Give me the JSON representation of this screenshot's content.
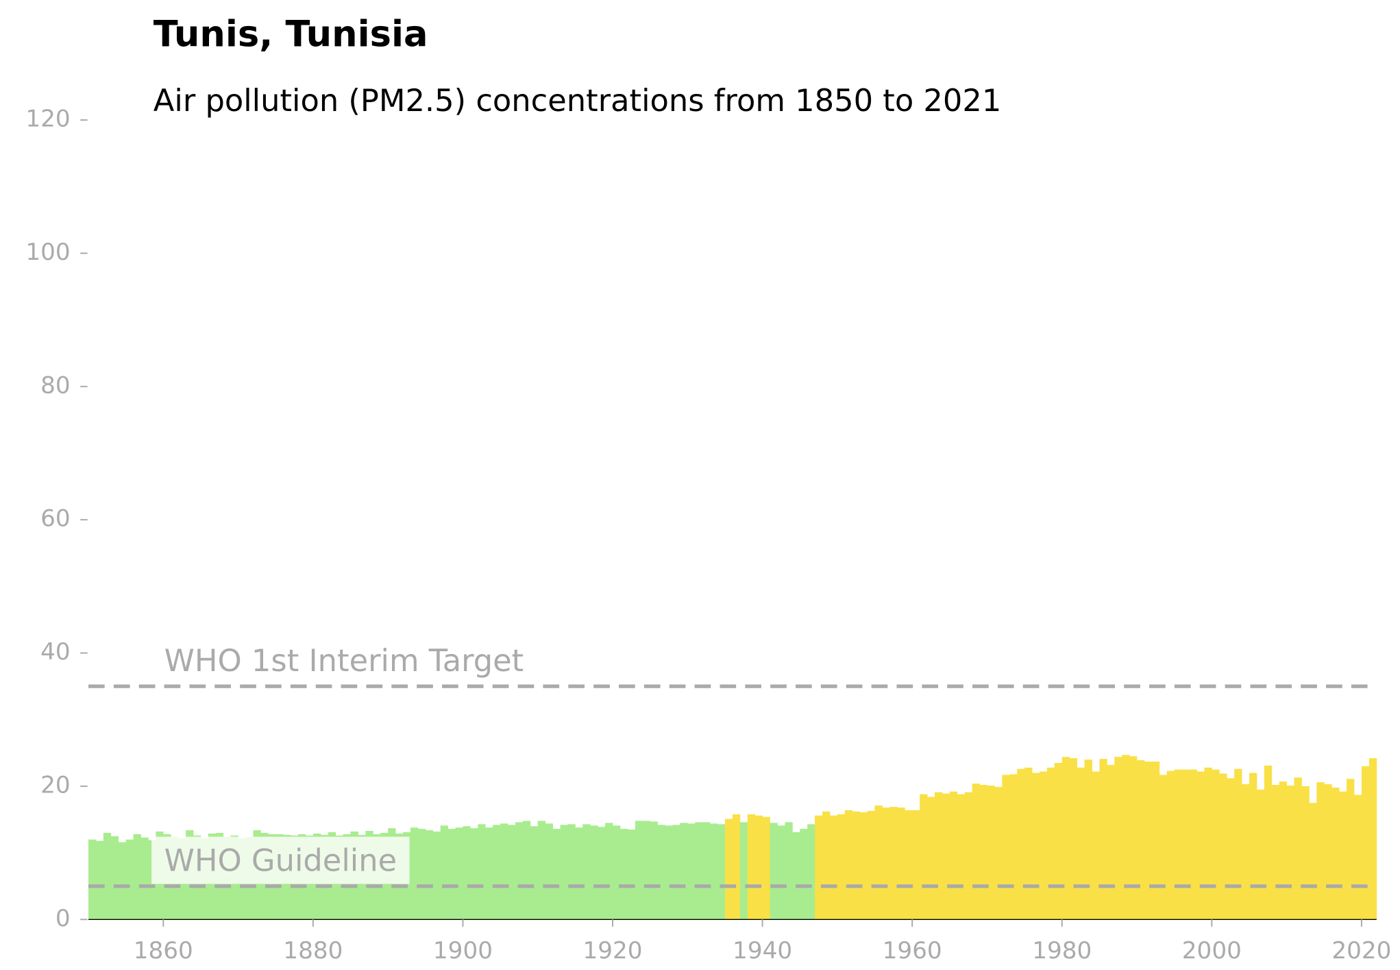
{
  "chart_data": {
    "type": "bar",
    "title": "Tunis, Tunisia",
    "subtitle": "Air pollution (PM2.5) concentrations from 1850 to 2021",
    "x": [
      1850,
      1851,
      1852,
      1853,
      1854,
      1855,
      1856,
      1857,
      1858,
      1859,
      1860,
      1861,
      1862,
      1863,
      1864,
      1865,
      1866,
      1867,
      1868,
      1869,
      1870,
      1871,
      1872,
      1873,
      1874,
      1875,
      1876,
      1877,
      1878,
      1879,
      1880,
      1881,
      1882,
      1883,
      1884,
      1885,
      1886,
      1887,
      1888,
      1889,
      1890,
      1891,
      1892,
      1893,
      1894,
      1895,
      1896,
      1897,
      1898,
      1899,
      1900,
      1901,
      1902,
      1903,
      1904,
      1905,
      1906,
      1907,
      1908,
      1909,
      1910,
      1911,
      1912,
      1913,
      1914,
      1915,
      1916,
      1917,
      1918,
      1919,
      1920,
      1921,
      1922,
      1923,
      1924,
      1925,
      1926,
      1927,
      1928,
      1929,
      1930,
      1931,
      1932,
      1933,
      1934,
      1935,
      1936,
      1937,
      1938,
      1939,
      1940,
      1941,
      1942,
      1943,
      1944,
      1945,
      1946,
      1947,
      1948,
      1949,
      1950,
      1951,
      1952,
      1953,
      1954,
      1955,
      1956,
      1957,
      1958,
      1959,
      1960,
      1961,
      1962,
      1963,
      1964,
      1965,
      1966,
      1967,
      1968,
      1969,
      1970,
      1971,
      1972,
      1973,
      1974,
      1975,
      1976,
      1977,
      1978,
      1979,
      1980,
      1981,
      1982,
      1983,
      1984,
      1985,
      1986,
      1987,
      1988,
      1989,
      1990,
      1991,
      1992,
      1993,
      1994,
      1995,
      1996,
      1997,
      1998,
      1999,
      2000,
      2001,
      2002,
      2003,
      2004,
      2005,
      2006,
      2007,
      2008,
      2009,
      2010,
      2011,
      2012,
      2013,
      2014,
      2015,
      2016,
      2017,
      2018,
      2019,
      2020,
      2021
    ],
    "values": [
      12.0,
      11.8,
      13.0,
      12.5,
      11.6,
      12.0,
      12.8,
      12.3,
      11.9,
      13.2,
      12.8,
      12.4,
      12.2,
      13.4,
      12.6,
      12.2,
      12.9,
      13.0,
      12.4,
      12.6,
      12.2,
      12.4,
      13.4,
      13.0,
      12.8,
      12.8,
      12.7,
      12.6,
      12.8,
      12.6,
      12.9,
      12.7,
      13.1,
      12.6,
      12.8,
      13.2,
      12.7,
      13.3,
      12.8,
      13.0,
      13.7,
      12.9,
      13.1,
      13.8,
      13.6,
      13.4,
      13.2,
      14.1,
      13.6,
      13.8,
      14.0,
      13.7,
      14.3,
      13.8,
      14.2,
      14.4,
      14.2,
      14.6,
      14.8,
      14.0,
      14.8,
      14.4,
      13.6,
      14.2,
      14.3,
      13.8,
      14.3,
      14.1,
      13.9,
      14.5,
      14.1,
      13.6,
      13.5,
      14.8,
      14.8,
      14.7,
      14.2,
      14.1,
      14.2,
      14.5,
      14.4,
      14.6,
      14.6,
      14.4,
      14.3,
      15.1,
      15.8,
      14.6,
      15.8,
      15.6,
      15.4,
      14.5,
      14.1,
      14.6,
      13.1,
      13.6,
      14.3,
      15.6,
      16.2,
      15.6,
      15.8,
      16.4,
      16.2,
      16.1,
      16.3,
      17.1,
      16.8,
      16.9,
      16.8,
      16.4,
      16.4,
      18.8,
      18.4,
      19.1,
      18.9,
      19.2,
      18.8,
      19.1,
      20.4,
      20.2,
      20.1,
      19.9,
      21.7,
      21.8,
      22.6,
      22.8,
      22.0,
      22.2,
      22.8,
      23.5,
      24.4,
      24.2,
      22.8,
      24.0,
      22.2,
      24.1,
      23.2,
      24.4,
      24.7,
      24.5,
      23.9,
      23.7,
      23.7,
      21.7,
      22.3,
      22.5,
      22.5,
      22.5,
      22.2,
      22.8,
      22.5,
      21.9,
      21.2,
      22.6,
      20.3,
      22.0,
      19.5,
      23.1,
      20.2,
      20.7,
      20.1,
      21.3,
      20.0,
      17.5,
      20.6,
      20.3,
      19.8,
      19.2,
      21.1,
      18.7,
      23.0,
      24.2
    ],
    "colors": [
      "#a8ec8f",
      "#a8ec8f",
      "#a8ec8f",
      "#a8ec8f",
      "#a8ec8f",
      "#a8ec8f",
      "#a8ec8f",
      "#a8ec8f",
      "#a8ec8f",
      "#a8ec8f",
      "#a8ec8f",
      "#a8ec8f",
      "#a8ec8f",
      "#a8ec8f",
      "#a8ec8f",
      "#a8ec8f",
      "#a8ec8f",
      "#a8ec8f",
      "#a8ec8f",
      "#a8ec8f",
      "#a8ec8f",
      "#a8ec8f",
      "#a8ec8f",
      "#a8ec8f",
      "#a8ec8f",
      "#a8ec8f",
      "#a8ec8f",
      "#a8ec8f",
      "#a8ec8f",
      "#a8ec8f",
      "#a8ec8f",
      "#a8ec8f",
      "#a8ec8f",
      "#a8ec8f",
      "#a8ec8f",
      "#a8ec8f",
      "#a8ec8f",
      "#a8ec8f",
      "#a8ec8f",
      "#a8ec8f",
      "#a8ec8f",
      "#a8ec8f",
      "#a8ec8f",
      "#a8ec8f",
      "#a8ec8f",
      "#a8ec8f",
      "#a8ec8f",
      "#a8ec8f",
      "#a8ec8f",
      "#a8ec8f",
      "#a8ec8f",
      "#a8ec8f",
      "#a8ec8f",
      "#a8ec8f",
      "#a8ec8f",
      "#a8ec8f",
      "#a8ec8f",
      "#a8ec8f",
      "#a8ec8f",
      "#a8ec8f",
      "#a8ec8f",
      "#a8ec8f",
      "#a8ec8f",
      "#a8ec8f",
      "#a8ec8f",
      "#a8ec8f",
      "#a8ec8f",
      "#a8ec8f",
      "#a8ec8f",
      "#a8ec8f",
      "#a8ec8f",
      "#a8ec8f",
      "#a8ec8f",
      "#a8ec8f",
      "#a8ec8f",
      "#a8ec8f",
      "#a8ec8f",
      "#a8ec8f",
      "#a8ec8f",
      "#a8ec8f",
      "#a8ec8f",
      "#a8ec8f",
      "#a8ec8f",
      "#a8ec8f",
      "#a8ec8f",
      "#f9e046",
      "#f9e046",
      "#a8ec8f",
      "#f9e046",
      "#f9e046",
      "#f9e046",
      "#a8ec8f",
      "#a8ec8f",
      "#a8ec8f",
      "#a8ec8f",
      "#a8ec8f",
      "#a8ec8f",
      "#f9e046",
      "#f9e046",
      "#f9e046",
      "#f9e046",
      "#f9e046",
      "#f9e046",
      "#f9e046",
      "#f9e046",
      "#f9e046",
      "#f9e046",
      "#f9e046",
      "#f9e046",
      "#f9e046",
      "#f9e046",
      "#f9e046",
      "#f9e046",
      "#f9e046",
      "#f9e046",
      "#f9e046",
      "#f9e046",
      "#f9e046",
      "#f9e046",
      "#f9e046",
      "#f9e046",
      "#f9e046",
      "#f9e046",
      "#f9e046",
      "#f9e046",
      "#f9e046",
      "#f9e046",
      "#f9e046",
      "#f9e046",
      "#f9e046",
      "#f9e046",
      "#f9e046",
      "#f9e046",
      "#f9e046",
      "#f9e046",
      "#f9e046",
      "#f9e046",
      "#f9e046",
      "#f9e046",
      "#f9e046",
      "#f9e046",
      "#f9e046",
      "#f9e046",
      "#f9e046",
      "#f9e046",
      "#f9e046",
      "#f9e046",
      "#f9e046",
      "#f9e046",
      "#f9e046",
      "#f9e046",
      "#f9e046",
      "#f9e046",
      "#f9e046",
      "#f9e046",
      "#f9e046",
      "#f9e046",
      "#f9e046",
      "#f9e046",
      "#f9e046",
      "#f9e046",
      "#f9e046",
      "#f9e046",
      "#f9e046",
      "#f9e046",
      "#f9e046",
      "#f9e046",
      "#f9e046",
      "#f9e046",
      "#f9e046",
      "#f9e046",
      "#f9e046",
      "#f9e046"
    ],
    "reference_lines": [
      {
        "label": "WHO 1st Interim Target",
        "value": 35,
        "color": "#aaaaaa"
      },
      {
        "label": "WHO Guideline",
        "value": 5,
        "color": "#aaaaaa"
      }
    ],
    "xlim": [
      1850,
      2022
    ],
    "xticks": [
      1860,
      1880,
      1900,
      1920,
      1940,
      1960,
      1980,
      2000,
      2020
    ],
    "ylim": [
      0,
      120
    ],
    "yticks": [
      0,
      20,
      40,
      60,
      80,
      100,
      120
    ],
    "grid": false
  }
}
